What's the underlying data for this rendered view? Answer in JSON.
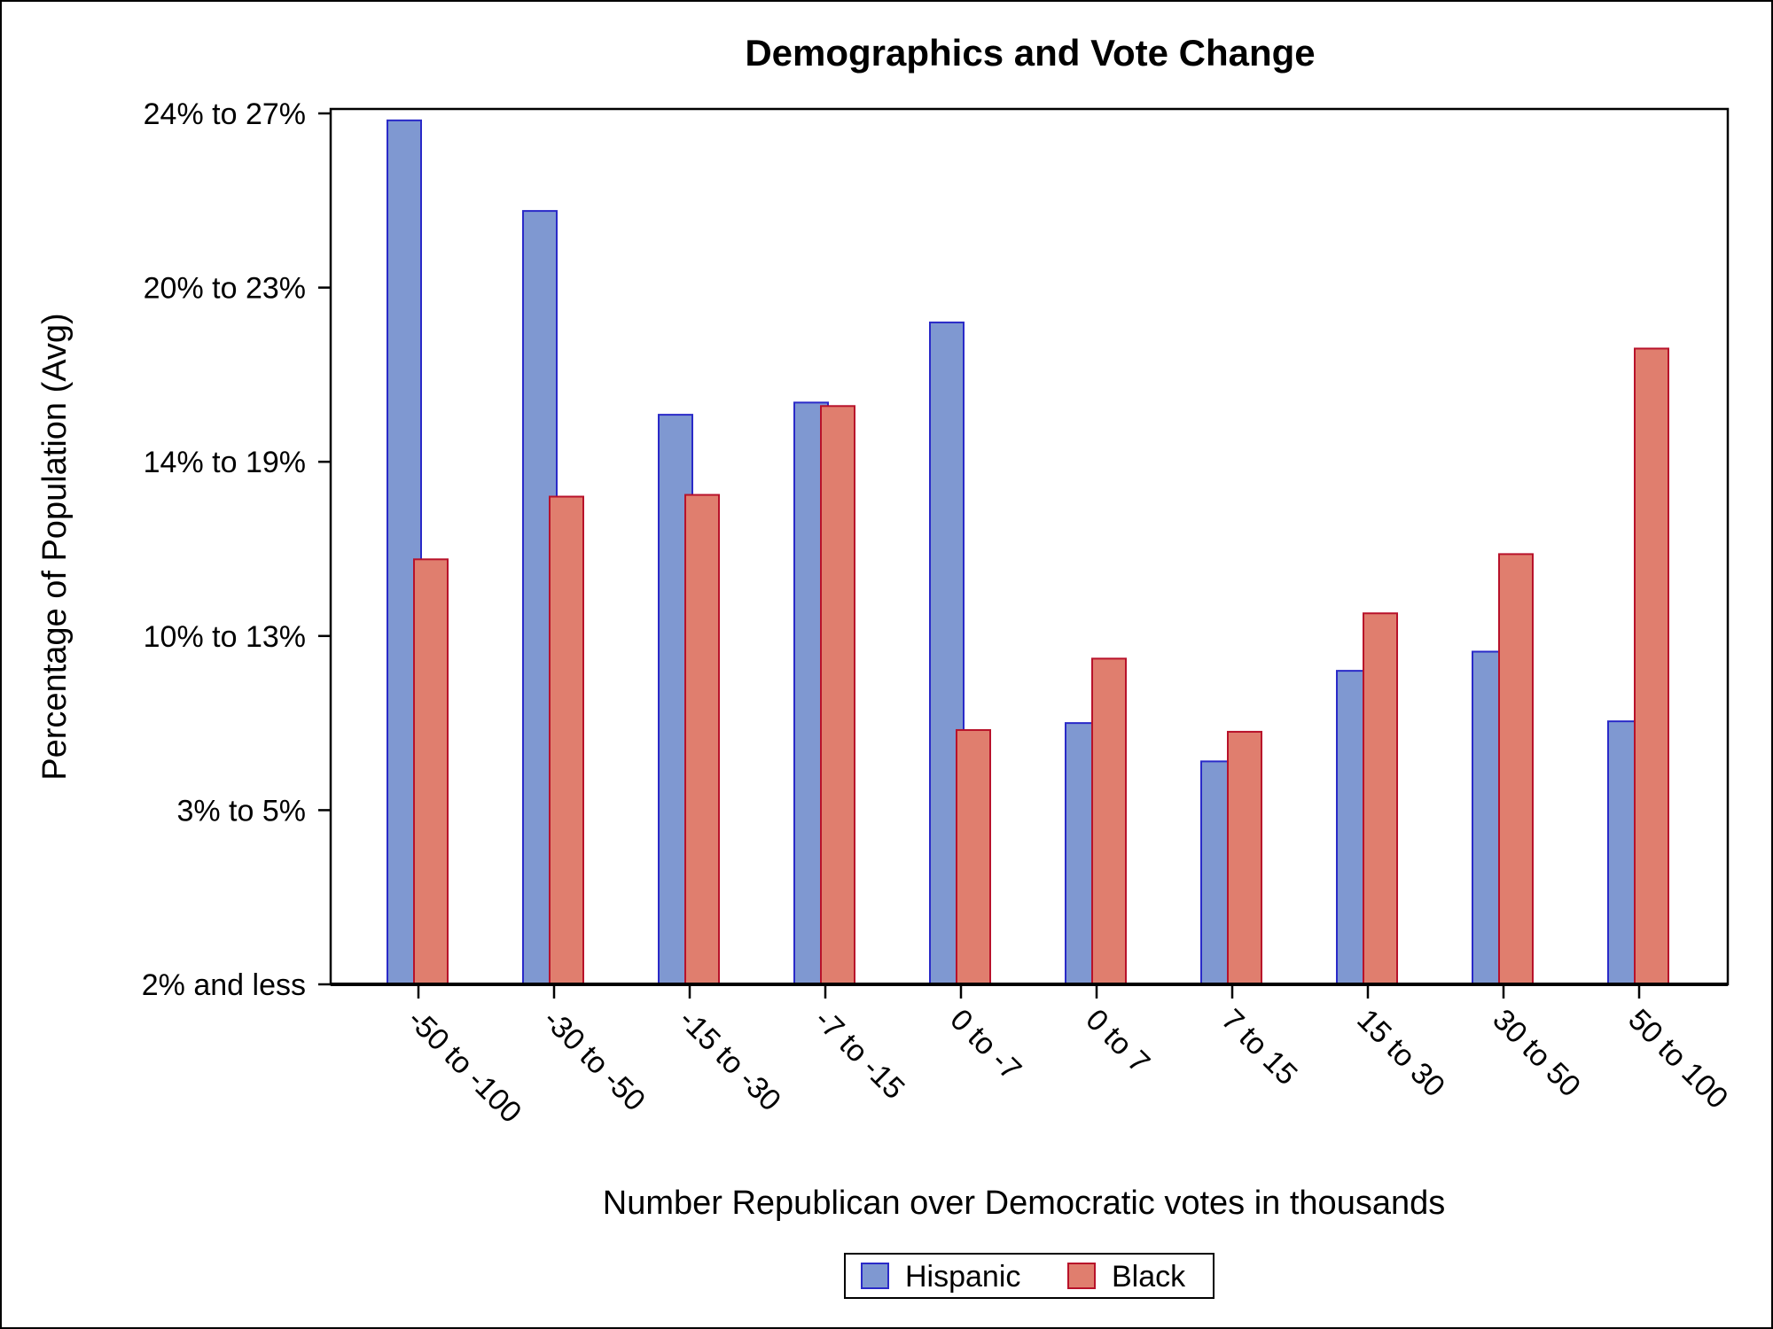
{
  "chart_data": {
    "type": "bar",
    "title": "Demographics and Vote Change",
    "xlabel": "Number Republican over Democratic votes in thousands",
    "ylabel": "Percentage of Population (Avg)",
    "categories": [
      "-50 to -100",
      "-30 to -50",
      "-15 to -30",
      "-7 to -15",
      "0 to -7",
      "0 to 7",
      "7 to 15",
      "15 to 30",
      "30 to 50",
      "50 to 100"
    ],
    "y_tick_labels": [
      "2% and less",
      "3% to 5%",
      "10% to 13%",
      "14% to 19%",
      "20% to 23%",
      "24% to 27%"
    ],
    "ylim": [
      0,
      5
    ],
    "series": [
      {
        "name": "Hispanic",
        "color": "#7f98d1",
        "stroke": "#2a2ac8",
        "values": [
          4.96,
          4.44,
          3.27,
          3.34,
          3.8,
          1.5,
          1.28,
          1.8,
          1.91,
          1.51
        ]
      },
      {
        "name": "Black",
        "color": "#e07e6e",
        "stroke": "#b8122a",
        "values": [
          2.44,
          2.8,
          2.81,
          3.32,
          1.46,
          1.87,
          1.45,
          2.13,
          2.47,
          3.65
        ]
      }
    ],
    "legend_position": "bottom",
    "grid": false
  }
}
